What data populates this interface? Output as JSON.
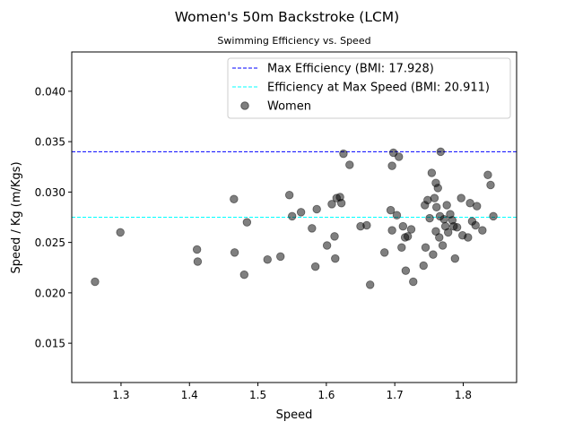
{
  "chart_data": {
    "type": "scatter",
    "title": "Women's 50m Backstroke (LCM)",
    "subtitle": "Swimming Efficiency vs. Speed",
    "xlabel": "Speed",
    "ylabel": "Speed / Kg (m/Kgs)",
    "xlim": [
      1.228,
      1.878
    ],
    "ylim": [
      0.0111,
      0.0439
    ],
    "xticks": [
      {
        "value": 1.3,
        "label": "1.3"
      },
      {
        "value": 1.4,
        "label": "1.4"
      },
      {
        "value": 1.5,
        "label": "1.5"
      },
      {
        "value": 1.6,
        "label": "1.6"
      },
      {
        "value": 1.7,
        "label": "1.7"
      },
      {
        "value": 1.8,
        "label": "1.8"
      }
    ],
    "yticks": [
      {
        "value": 0.015,
        "label": "0.015"
      },
      {
        "value": 0.02,
        "label": "0.020"
      },
      {
        "value": 0.025,
        "label": "0.025"
      },
      {
        "value": 0.03,
        "label": "0.030"
      },
      {
        "value": 0.035,
        "label": "0.035"
      },
      {
        "value": 0.04,
        "label": "0.040"
      }
    ],
    "grid": false,
    "legend_position": "top-right",
    "reference_lines": [
      {
        "name": "Max Efficiency (BMI: 17.928)",
        "value": 0.034,
        "color": "#0000ff",
        "style": "dashed"
      },
      {
        "name": "Efficiency at Max Speed (BMI: 20.911)",
        "value": 0.0275,
        "color": "#00ffff",
        "style": "dashed"
      }
    ],
    "series": [
      {
        "name": "Women",
        "color": "#000000",
        "opacity": 0.5,
        "points": [
          [
            1.262,
            0.0211
          ],
          [
            1.299,
            0.026
          ],
          [
            1.411,
            0.0243
          ],
          [
            1.412,
            0.0231
          ],
          [
            1.465,
            0.0293
          ],
          [
            1.466,
            0.024
          ],
          [
            1.48,
            0.0218
          ],
          [
            1.484,
            0.027
          ],
          [
            1.514,
            0.0233
          ],
          [
            1.533,
            0.0236
          ],
          [
            1.546,
            0.0297
          ],
          [
            1.55,
            0.0276
          ],
          [
            1.563,
            0.028
          ],
          [
            1.579,
            0.0264
          ],
          [
            1.584,
            0.0226
          ],
          [
            1.586,
            0.0283
          ],
          [
            1.601,
            0.0247
          ],
          [
            1.608,
            0.0288
          ],
          [
            1.612,
            0.0256
          ],
          [
            1.613,
            0.0234
          ],
          [
            1.615,
            0.0294
          ],
          [
            1.62,
            0.0295
          ],
          [
            1.622,
            0.0289
          ],
          [
            1.625,
            0.0338
          ],
          [
            1.634,
            0.0327
          ],
          [
            1.65,
            0.0266
          ],
          [
            1.659,
            0.0267
          ],
          [
            1.664,
            0.0208
          ],
          [
            1.685,
            0.024
          ],
          [
            1.694,
            0.0282
          ],
          [
            1.696,
            0.0326
          ],
          [
            1.698,
            0.0339
          ],
          [
            1.696,
            0.0262
          ],
          [
            1.703,
            0.0277
          ],
          [
            1.706,
            0.0335
          ],
          [
            1.71,
            0.0245
          ],
          [
            1.712,
            0.0266
          ],
          [
            1.715,
            0.0255
          ],
          [
            1.716,
            0.0222
          ],
          [
            1.719,
            0.0256
          ],
          [
            1.724,
            0.0263
          ],
          [
            1.727,
            0.0211
          ],
          [
            1.742,
            0.0227
          ],
          [
            1.744,
            0.0287
          ],
          [
            1.745,
            0.0245
          ],
          [
            1.748,
            0.0292
          ],
          [
            1.751,
            0.0274
          ],
          [
            1.754,
            0.0319
          ],
          [
            1.756,
            0.0238
          ],
          [
            1.758,
            0.0294
          ],
          [
            1.76,
            0.0309
          ],
          [
            1.76,
            0.0261
          ],
          [
            1.761,
            0.0285
          ],
          [
            1.763,
            0.0304
          ],
          [
            1.765,
            0.0255
          ],
          [
            1.766,
            0.0276
          ],
          [
            1.767,
            0.034
          ],
          [
            1.77,
            0.0247
          ],
          [
            1.772,
            0.0273
          ],
          [
            1.774,
            0.0266
          ],
          [
            1.776,
            0.0287
          ],
          [
            1.778,
            0.026
          ],
          [
            1.781,
            0.0278
          ],
          [
            1.784,
            0.0272
          ],
          [
            1.786,
            0.0266
          ],
          [
            1.788,
            0.0234
          ],
          [
            1.791,
            0.0265
          ],
          [
            1.797,
            0.0294
          ],
          [
            1.799,
            0.0257
          ],
          [
            1.807,
            0.0255
          ],
          [
            1.81,
            0.0289
          ],
          [
            1.813,
            0.0271
          ],
          [
            1.818,
            0.0267
          ],
          [
            1.82,
            0.0286
          ],
          [
            1.828,
            0.0262
          ],
          [
            1.836,
            0.0317
          ],
          [
            1.84,
            0.0307
          ],
          [
            1.844,
            0.0276
          ]
        ]
      }
    ]
  }
}
